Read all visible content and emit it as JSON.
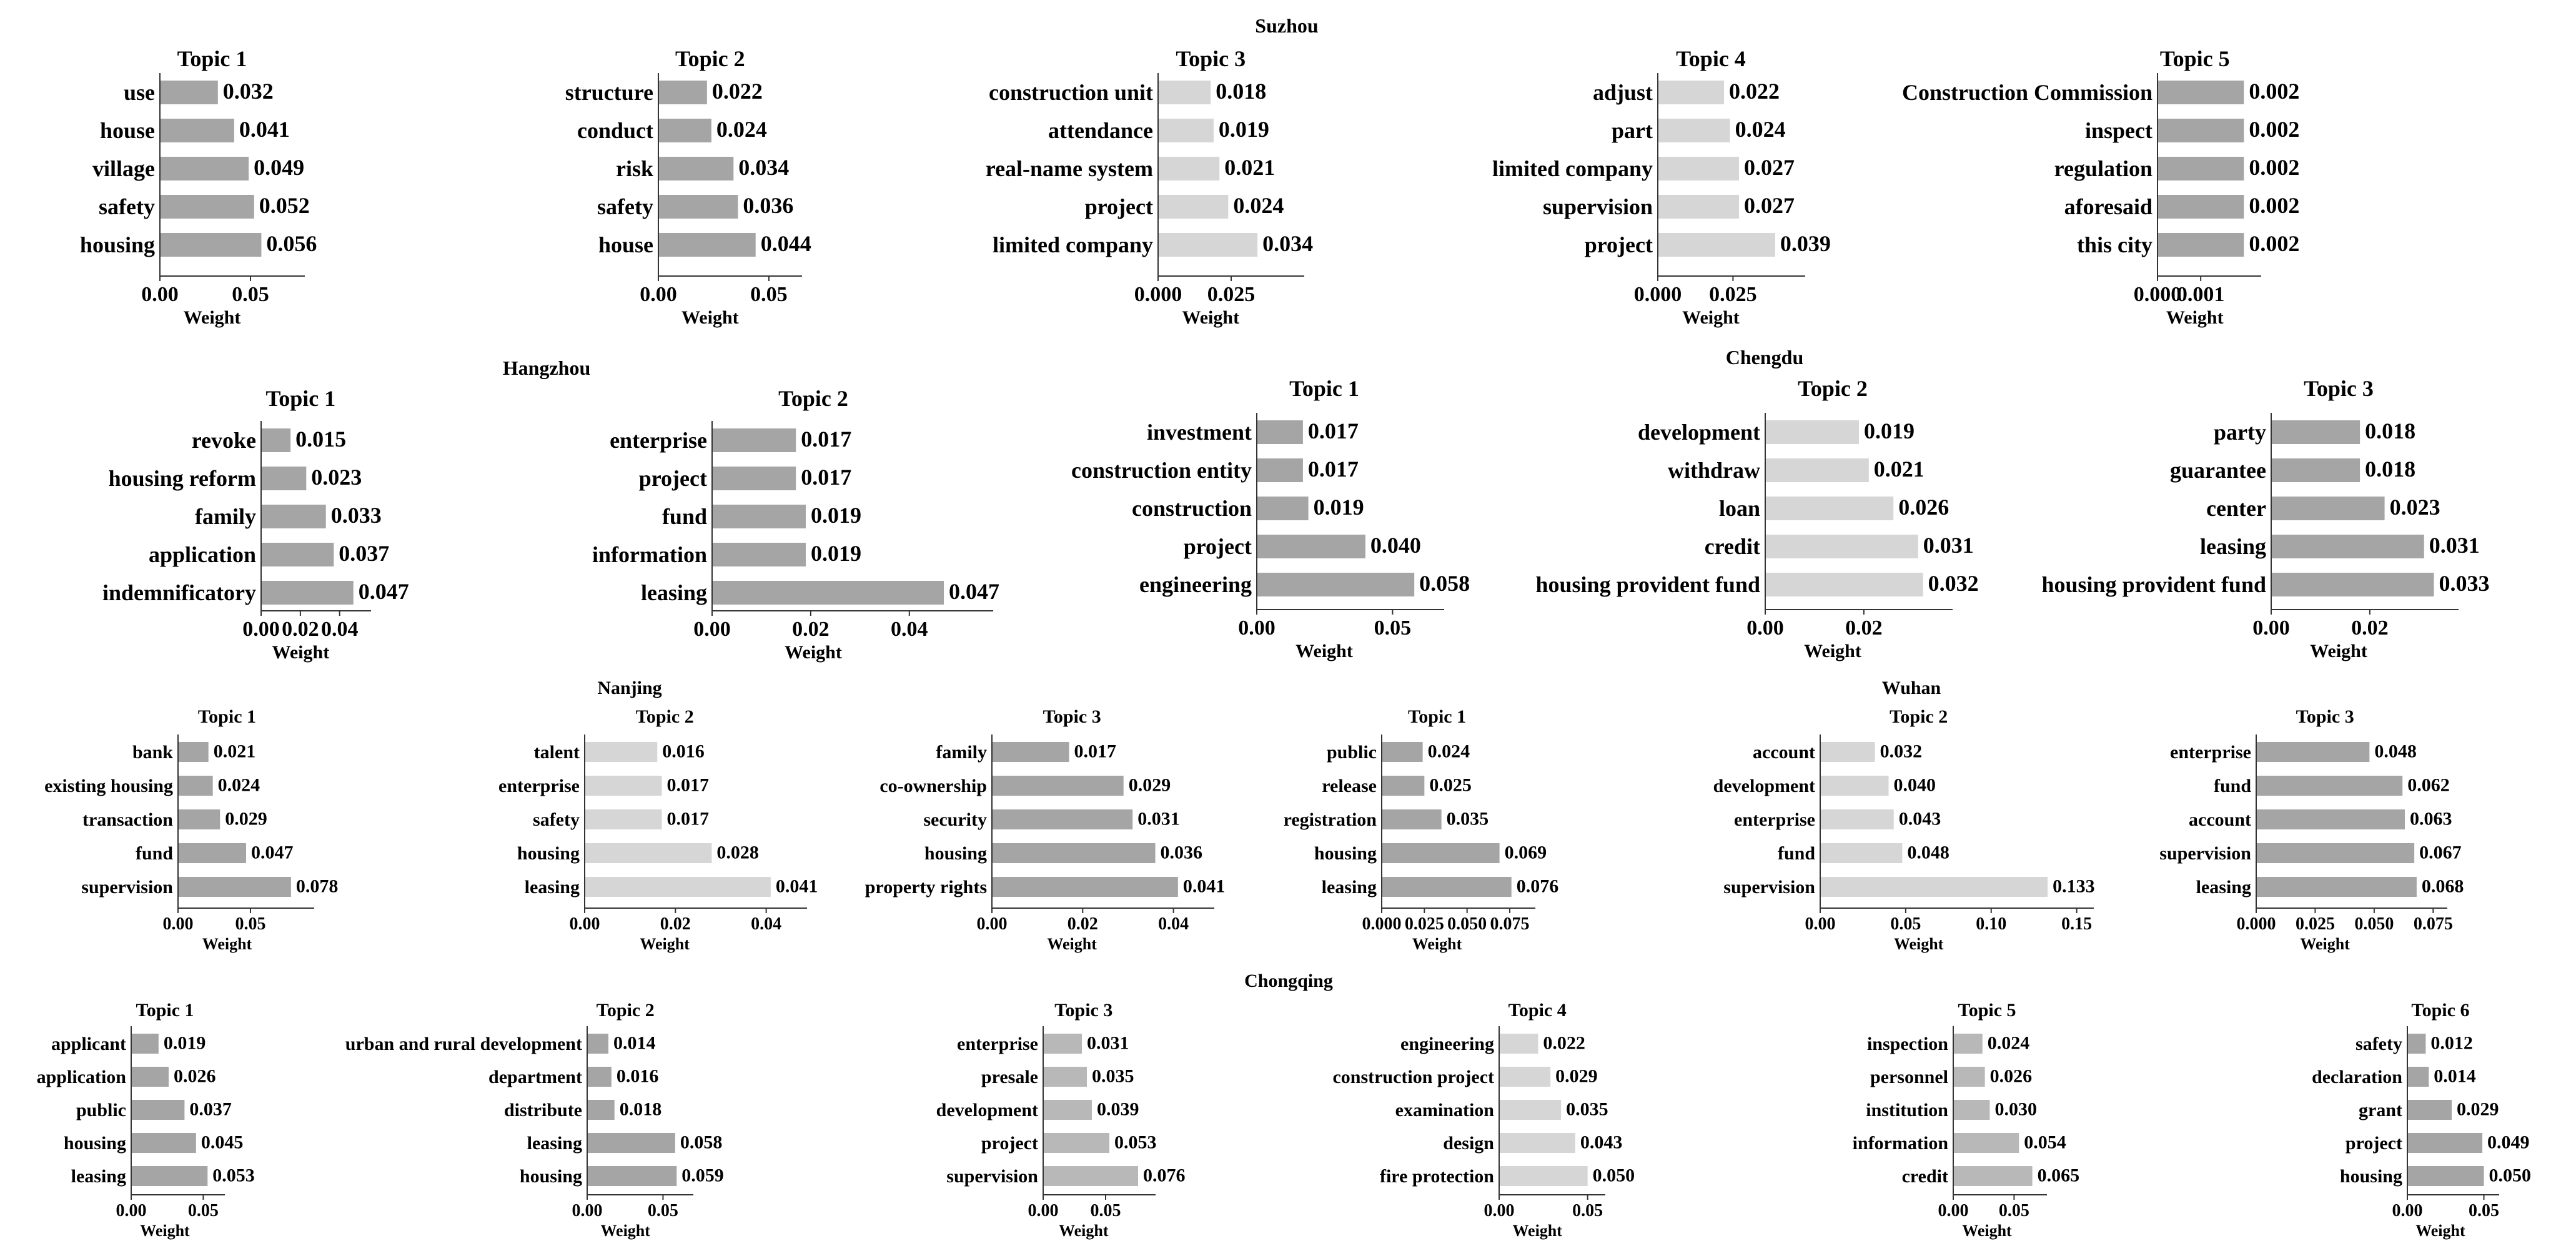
{
  "figure": {
    "weight_label": "Weight"
  },
  "colors": {
    "dark": "#a5a5a5",
    "mid": "#b8b8b8",
    "light": "#d6d6d6",
    "axis": "#333333",
    "text": "#000000"
  },
  "chart_data": [
    {
      "city": "Suzhou",
      "charts": [
        {
          "title": "Topic 1",
          "type": "bar",
          "orientation": "horizontal",
          "tone": "dark",
          "categories": [
            "use",
            "house",
            "village",
            "safety",
            "housing"
          ],
          "values": [
            0.032,
            0.041,
            0.049,
            0.052,
            0.056
          ],
          "value_labels": [
            "0.032",
            "0.041",
            "0.049",
            "0.052",
            "0.056"
          ],
          "xlim": [
            0,
            0.08
          ],
          "xticks": [
            0,
            0.05
          ],
          "xtick_labels": [
            "0.00",
            "0.05"
          ],
          "xlabel": "Weight"
        },
        {
          "title": "Topic 2",
          "type": "bar",
          "orientation": "horizontal",
          "tone": "dark",
          "categories": [
            "structure",
            "conduct",
            "risk",
            "safety",
            "house"
          ],
          "values": [
            0.022,
            0.024,
            0.034,
            0.036,
            0.044
          ],
          "value_labels": [
            "0.022",
            "0.024",
            "0.034",
            "0.036",
            "0.044"
          ],
          "xlim": [
            0,
            0.065
          ],
          "xticks": [
            0,
            0.05
          ],
          "xtick_labels": [
            "0.00",
            "0.05"
          ],
          "xlabel": "Weight"
        },
        {
          "title": "Topic 3",
          "type": "bar",
          "orientation": "horizontal",
          "tone": "light",
          "categories": [
            "construction unit",
            "attendance",
            "real-name system",
            "project",
            "limited company"
          ],
          "values": [
            0.018,
            0.019,
            0.021,
            0.024,
            0.034
          ],
          "value_labels": [
            "0.018",
            "0.019",
            "0.021",
            "0.024",
            "0.034"
          ],
          "xlim": [
            0,
            0.05
          ],
          "xticks": [
            0,
            0.025
          ],
          "xtick_labels": [
            "0.000",
            "0.025"
          ],
          "xlabel": "Weight"
        },
        {
          "title": "Topic 4",
          "type": "bar",
          "orientation": "horizontal",
          "tone": "light",
          "categories": [
            "adjust",
            "part",
            "limited company",
            "supervision",
            "project"
          ],
          "values": [
            0.022,
            0.024,
            0.027,
            0.027,
            0.039
          ],
          "value_labels": [
            "0.022",
            "0.024",
            "0.027",
            "0.027",
            "0.039"
          ],
          "xlim": [
            0,
            0.049
          ],
          "xticks": [
            0,
            0.025
          ],
          "xtick_labels": [
            "0.000",
            "0.025"
          ],
          "xlabel": "Weight"
        },
        {
          "title": "Topic 5",
          "type": "bar",
          "orientation": "horizontal",
          "tone": "dark",
          "categories": [
            "Construction Commission",
            "inspect",
            "regulation",
            "aforesaid",
            "this city"
          ],
          "values": [
            0.002,
            0.002,
            0.002,
            0.002,
            0.002
          ],
          "value_labels": [
            "0.002",
            "0.002",
            "0.002",
            "0.002",
            "0.002"
          ],
          "xlim": [
            0,
            0.0024
          ],
          "xticks": [
            0,
            0.001
          ],
          "xtick_labels": [
            "0.000",
            "0.001"
          ],
          "xlabel": "Weight"
        }
      ]
    },
    {
      "city": "Hangzhou",
      "charts": [
        {
          "title": "Topic 1",
          "type": "bar",
          "orientation": "horizontal",
          "tone": "dark",
          "categories": [
            "revoke",
            "housing reform",
            "family",
            "application",
            "indemnificatory"
          ],
          "values": [
            0.015,
            0.023,
            0.033,
            0.037,
            0.047
          ],
          "value_labels": [
            "0.015",
            "0.023",
            "0.033",
            "0.037",
            "0.047"
          ],
          "xlim": [
            0,
            0.056
          ],
          "xticks": [
            0,
            0.02,
            0.04
          ],
          "xtick_labels": [
            "0.00",
            "0.02",
            "0.04"
          ],
          "xlabel": "Weight"
        },
        {
          "title": "Topic 2",
          "type": "bar",
          "orientation": "horizontal",
          "tone": "dark",
          "categories": [
            "enterprise",
            "project",
            "fund",
            "information",
            "leasing"
          ],
          "values": [
            0.017,
            0.017,
            0.019,
            0.019,
            0.047
          ],
          "value_labels": [
            "0.017",
            "0.017",
            "0.019",
            "0.019",
            "0.047"
          ],
          "xlim": [
            0,
            0.057
          ],
          "xticks": [
            0,
            0.02,
            0.04
          ],
          "xtick_labels": [
            "0.00",
            "0.02",
            "0.04"
          ],
          "xlabel": "Weight"
        }
      ]
    },
    {
      "city": "Chengdu",
      "charts": [
        {
          "title": "Topic 1",
          "type": "bar",
          "orientation": "horizontal",
          "tone": "dark",
          "categories": [
            "investment",
            "construction entity",
            "construction",
            "project",
            "engineering"
          ],
          "values": [
            0.017,
            0.017,
            0.019,
            0.04,
            0.058
          ],
          "value_labels": [
            "0.017",
            "0.017",
            "0.019",
            "0.040",
            "0.058"
          ],
          "xlim": [
            0,
            0.069
          ],
          "xticks": [
            0,
            0.05
          ],
          "xtick_labels": [
            "0.00",
            "0.05"
          ],
          "xlabel": "Weight"
        },
        {
          "title": "Topic 2",
          "type": "bar",
          "orientation": "horizontal",
          "tone": "light",
          "categories": [
            "development",
            "withdraw",
            "loan",
            "credit",
            "housing provident fund"
          ],
          "values": [
            0.019,
            0.021,
            0.026,
            0.031,
            0.032
          ],
          "value_labels": [
            "0.019",
            "0.021",
            "0.026",
            "0.031",
            "0.032"
          ],
          "xlim": [
            0,
            0.038
          ],
          "xticks": [
            0,
            0.02
          ],
          "xtick_labels": [
            "0.00",
            "0.02"
          ],
          "xlabel": "Weight"
        },
        {
          "title": "Topic 3",
          "type": "bar",
          "orientation": "horizontal",
          "tone": "dark",
          "categories": [
            "party",
            "guarantee",
            "center",
            "leasing",
            "housing provident fund"
          ],
          "values": [
            0.018,
            0.018,
            0.023,
            0.031,
            0.033
          ],
          "value_labels": [
            "0.018",
            "0.018",
            "0.023",
            "0.031",
            "0.033"
          ],
          "xlim": [
            0,
            0.038
          ],
          "xticks": [
            0,
            0.02
          ],
          "xtick_labels": [
            "0.00",
            "0.02"
          ],
          "xlabel": "Weight"
        }
      ]
    },
    {
      "city": "Nanjing",
      "charts": [
        {
          "title": "Topic 1",
          "type": "bar",
          "orientation": "horizontal",
          "tone": "dark",
          "categories": [
            "bank",
            "existing housing",
            "transaction",
            "fund",
            "supervision"
          ],
          "values": [
            0.021,
            0.024,
            0.029,
            0.047,
            0.078
          ],
          "value_labels": [
            "0.021",
            "0.024",
            "0.029",
            "0.047",
            "0.078"
          ],
          "xlim": [
            0,
            0.094
          ],
          "xticks": [
            0,
            0.05
          ],
          "xtick_labels": [
            "0.00",
            "0.05"
          ],
          "xlabel": "Weight"
        },
        {
          "title": "Topic 2",
          "type": "bar",
          "orientation": "horizontal",
          "tone": "light",
          "categories": [
            "talent",
            "enterprise",
            "safety",
            "housing",
            "leasing"
          ],
          "values": [
            0.016,
            0.017,
            0.017,
            0.028,
            0.041
          ],
          "value_labels": [
            "0.016",
            "0.017",
            "0.017",
            "0.028",
            "0.041"
          ],
          "xlim": [
            0,
            0.049
          ],
          "xticks": [
            0,
            0.02,
            0.04
          ],
          "xtick_labels": [
            "0.00",
            "0.02",
            "0.04"
          ],
          "xlabel": "Weight"
        },
        {
          "title": "Topic 3",
          "type": "bar",
          "orientation": "horizontal",
          "tone": "dark",
          "categories": [
            "family",
            "co-ownership",
            "security",
            "housing",
            "property rights"
          ],
          "values": [
            0.017,
            0.029,
            0.031,
            0.036,
            0.041
          ],
          "value_labels": [
            "0.017",
            "0.029",
            "0.031",
            "0.036",
            "0.041"
          ],
          "xlim": [
            0,
            0.049
          ],
          "xticks": [
            0,
            0.02,
            0.04
          ],
          "xtick_labels": [
            "0.00",
            "0.02",
            "0.04"
          ],
          "xlabel": "Weight"
        }
      ]
    },
    {
      "city": "Wuhan",
      "charts": [
        {
          "title": "Topic 1",
          "type": "bar",
          "orientation": "horizontal",
          "tone": "dark",
          "categories": [
            "public",
            "release",
            "registration",
            "housing",
            "leasing"
          ],
          "values": [
            0.024,
            0.025,
            0.035,
            0.069,
            0.076
          ],
          "value_labels": [
            "0.024",
            "0.025",
            "0.035",
            "0.069",
            "0.076"
          ],
          "xlim": [
            0,
            0.09
          ],
          "xticks": [
            0,
            0.025,
            0.05,
            0.075
          ],
          "xtick_labels": [
            "0.000",
            "0.025",
            "0.050",
            "0.075"
          ],
          "xlabel": "Weight"
        },
        {
          "title": "Topic 2",
          "type": "bar",
          "orientation": "horizontal",
          "tone": "light",
          "categories": [
            "account",
            "development",
            "enterprise",
            "fund",
            "supervision"
          ],
          "values": [
            0.032,
            0.04,
            0.043,
            0.048,
            0.133
          ],
          "value_labels": [
            "0.032",
            "0.040",
            "0.043",
            "0.048",
            "0.133"
          ],
          "xlim": [
            0,
            0.16
          ],
          "xticks": [
            0,
            0.05,
            0.1,
            0.15
          ],
          "xtick_labels": [
            "0.00",
            "0.05",
            "0.10",
            "0.15"
          ],
          "xlabel": "Weight"
        },
        {
          "title": "Topic 3",
          "type": "bar",
          "orientation": "horizontal",
          "tone": "dark",
          "categories": [
            "enterprise",
            "fund",
            "account",
            "supervision",
            "leasing"
          ],
          "values": [
            0.048,
            0.062,
            0.063,
            0.067,
            0.068
          ],
          "value_labels": [
            "0.048",
            "0.062",
            "0.063",
            "0.067",
            "0.068"
          ],
          "xlim": [
            0,
            0.081
          ],
          "xticks": [
            0,
            0.025,
            0.05,
            0.075
          ],
          "xtick_labels": [
            "0.000",
            "0.025",
            "0.050",
            "0.075"
          ],
          "xlabel": "Weight"
        }
      ]
    },
    {
      "city": "Chongqing",
      "charts": [
        {
          "title": "Topic 1",
          "type": "bar",
          "orientation": "horizontal",
          "tone": "dark",
          "categories": [
            "applicant",
            "application",
            "public",
            "housing",
            "leasing"
          ],
          "values": [
            0.019,
            0.026,
            0.037,
            0.045,
            0.053
          ],
          "value_labels": [
            "0.019",
            "0.026",
            "0.037",
            "0.045",
            "0.053"
          ],
          "xlim": [
            0,
            0.065
          ],
          "xticks": [
            0,
            0.05
          ],
          "xtick_labels": [
            "0.00",
            "0.05"
          ],
          "xlabel": "Weight"
        },
        {
          "title": "Topic 2",
          "type": "bar",
          "orientation": "horizontal",
          "tone": "dark",
          "categories": [
            "urban and rural development",
            "department",
            "distribute",
            "leasing",
            "housing"
          ],
          "values": [
            0.014,
            0.016,
            0.018,
            0.058,
            0.059
          ],
          "value_labels": [
            "0.014",
            "0.016",
            "0.018",
            "0.058",
            "0.059"
          ],
          "xlim": [
            0,
            0.07
          ],
          "xticks": [
            0,
            0.05
          ],
          "xtick_labels": [
            "0.00",
            "0.05"
          ],
          "xlabel": "Weight"
        },
        {
          "title": "Topic 3",
          "type": "bar",
          "orientation": "horizontal",
          "tone": "mid",
          "categories": [
            "enterprise",
            "presale",
            "development",
            "project",
            "supervision"
          ],
          "values": [
            0.031,
            0.035,
            0.039,
            0.053,
            0.076
          ],
          "value_labels": [
            "0.031",
            "0.035",
            "0.039",
            "0.053",
            "0.076"
          ],
          "xlim": [
            0,
            0.09
          ],
          "xticks": [
            0,
            0.05
          ],
          "xtick_labels": [
            "0.00",
            "0.05"
          ],
          "xlabel": "Weight"
        },
        {
          "title": "Topic 4",
          "type": "bar",
          "orientation": "horizontal",
          "tone": "light",
          "categories": [
            "engineering",
            "construction project",
            "examination",
            "design",
            "fire protection"
          ],
          "values": [
            0.022,
            0.029,
            0.035,
            0.043,
            0.05
          ],
          "value_labels": [
            "0.022",
            "0.029",
            "0.035",
            "0.043",
            "0.050"
          ],
          "xlim": [
            0,
            0.06
          ],
          "xticks": [
            0,
            0.05
          ],
          "xtick_labels": [
            "0.00",
            "0.05"
          ],
          "xlabel": "Weight"
        },
        {
          "title": "Topic 5",
          "type": "bar",
          "orientation": "horizontal",
          "tone": "mid",
          "categories": [
            "inspection",
            "personnel",
            "institution",
            "information",
            "credit"
          ],
          "values": [
            0.024,
            0.026,
            0.03,
            0.054,
            0.065
          ],
          "value_labels": [
            "0.024",
            "0.026",
            "0.030",
            "0.054",
            "0.065"
          ],
          "xlim": [
            0,
            0.077
          ],
          "xticks": [
            0,
            0.05
          ],
          "xtick_labels": [
            "0.00",
            "0.05"
          ],
          "xlabel": "Weight"
        },
        {
          "title": "Topic 6",
          "type": "bar",
          "orientation": "horizontal",
          "tone": "dark",
          "categories": [
            "safety",
            "declaration",
            "grant",
            "project",
            "housing"
          ],
          "values": [
            0.012,
            0.014,
            0.029,
            0.049,
            0.05
          ],
          "value_labels": [
            "0.012",
            "0.014",
            "0.029",
            "0.049",
            "0.050"
          ],
          "xlim": [
            0,
            0.06
          ],
          "xticks": [
            0,
            0.05
          ],
          "xtick_labels": [
            "0.00",
            "0.05"
          ],
          "xlabel": "Weight"
        }
      ]
    }
  ]
}
